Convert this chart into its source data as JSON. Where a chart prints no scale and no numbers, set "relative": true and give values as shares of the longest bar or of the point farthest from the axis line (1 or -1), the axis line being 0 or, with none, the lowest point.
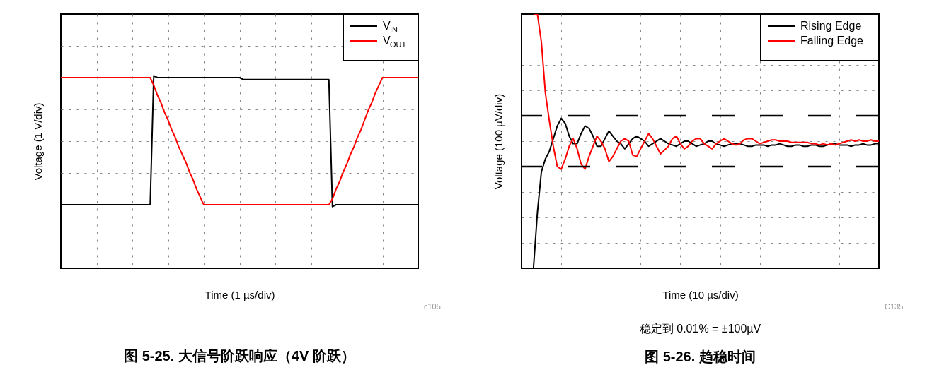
{
  "chart_data": [
    {
      "type": "line",
      "title": "图 5-25. 大信号阶跃响应（4V 阶跃）",
      "xlabel": "Time (1 µs/div)",
      "ylabel": "Voltage (1 V/div)",
      "annotations": [
        "c105"
      ],
      "relative": true,
      "grid": true,
      "legend": "top right",
      "tick_labels": false,
      "categories": [
        null,
        null,
        null,
        null,
        null,
        null,
        null,
        null,
        null,
        null,
        null,
        null,
        null,
        null,
        null,
        null,
        null,
        null,
        null,
        null,
        null,
        null,
        null,
        null,
        null,
        null,
        null,
        null,
        null,
        null,
        null,
        null,
        null,
        null,
        null,
        null,
        null,
        null,
        null,
        null,
        null,
        null,
        null,
        null,
        null,
        null,
        null,
        null,
        null,
        null,
        null,
        null,
        null,
        null,
        null,
        null,
        null,
        null,
        null,
        null,
        null,
        null,
        null,
        null,
        null,
        null,
        null,
        null,
        null,
        null,
        null,
        null,
        null,
        null,
        null,
        null,
        null,
        null,
        null,
        null,
        null,
        null,
        null,
        null,
        null,
        null,
        null,
        null,
        null,
        null,
        null,
        null,
        null,
        null,
        null,
        null,
        null,
        null,
        null,
        null,
        null
      ],
      "series": [
        {
          "name": "V$_{IN}$",
          "color": "#000000",
          "values": [
            0.33,
            0.33,
            0.33,
            0.33,
            0.33,
            0.33,
            0.33,
            0.33,
            0.33,
            0.33,
            0.33,
            0.33,
            0.33,
            0.33,
            0.33,
            0.33,
            0.33,
            0.33,
            0.33,
            0.33,
            0.33,
            0.33,
            0.33,
            0.33,
            0.33,
            0.33,
            1.0,
            0.99,
            0.99,
            0.99,
            0.99,
            0.99,
            0.99,
            0.99,
            0.99,
            0.99,
            0.99,
            0.99,
            0.99,
            0.99,
            0.99,
            0.99,
            0.99,
            0.99,
            0.99,
            0.99,
            0.99,
            0.99,
            0.99,
            0.99,
            0.99,
            0.98,
            0.98,
            0.98,
            0.98,
            0.98,
            0.98,
            0.98,
            0.98,
            0.98,
            0.98,
            0.98,
            0.98,
            0.98,
            0.98,
            0.98,
            0.98,
            0.98,
            0.98,
            0.98,
            0.98,
            0.98,
            0.98,
            0.98,
            0.98,
            0.98,
            0.32,
            0.33,
            0.33,
            0.33,
            0.33,
            0.33,
            0.33,
            0.33,
            0.33,
            0.33,
            0.33,
            0.33,
            0.33,
            0.33,
            0.33,
            0.33,
            0.33,
            0.33,
            0.33,
            0.33,
            0.33,
            0.33,
            0.33,
            0.33,
            0.33
          ]
        },
        {
          "name": "V$_{OUT}$",
          "color": "#ff0000",
          "values": [
            0.99,
            0.99,
            0.99,
            0.99,
            0.99,
            0.99,
            0.99,
            0.99,
            0.99,
            0.99,
            0.99,
            0.99,
            0.99,
            0.99,
            0.99,
            0.99,
            0.99,
            0.99,
            0.99,
            0.99,
            0.99,
            0.99,
            0.99,
            0.99,
            0.99,
            0.99,
            0.95,
            0.9,
            0.86,
            0.81,
            0.77,
            0.72,
            0.68,
            0.63,
            0.59,
            0.55,
            0.5,
            0.46,
            0.41,
            0.37,
            0.33,
            0.33,
            0.33,
            0.33,
            0.33,
            0.33,
            0.33,
            0.33,
            0.33,
            0.33,
            0.33,
            0.33,
            0.33,
            0.33,
            0.33,
            0.33,
            0.33,
            0.33,
            0.33,
            0.33,
            0.33,
            0.33,
            0.33,
            0.33,
            0.33,
            0.33,
            0.33,
            0.33,
            0.33,
            0.33,
            0.33,
            0.33,
            0.33,
            0.33,
            0.33,
            0.33,
            0.36,
            0.41,
            0.45,
            0.5,
            0.54,
            0.59,
            0.63,
            0.68,
            0.72,
            0.77,
            0.82,
            0.86,
            0.91,
            0.95,
            0.99,
            0.99,
            0.99,
            0.99,
            0.99,
            0.99,
            0.99,
            0.99,
            0.99,
            0.99,
            0.99
          ]
        }
      ]
    },
    {
      "type": "line",
      "title": "图 5-26. 趋稳时间",
      "xlabel": "Time (10 µs/div)",
      "ylabel": "Voltage (100 µV/div)",
      "annotations": [
        "C135",
        "稳定到 0.01% = ±100µV"
      ],
      "relative": true,
      "grid": true,
      "legend": "top right",
      "tick_labels": false,
      "categories": [
        null,
        null,
        null,
        null,
        null,
        null,
        null,
        null,
        null,
        null,
        null,
        null,
        null,
        null,
        null,
        null,
        null,
        null,
        null,
        null,
        null,
        null,
        null,
        null,
        null,
        null,
        null,
        null,
        null,
        null,
        null,
        null,
        null,
        null,
        null,
        null,
        null,
        null,
        null,
        null,
        null,
        null,
        null,
        null,
        null,
        null,
        null,
        null,
        null,
        null,
        null,
        null,
        null,
        null,
        null,
        null,
        null,
        null,
        null,
        null,
        null,
        null,
        null,
        null,
        null,
        null,
        null,
        null,
        null,
        null,
        null,
        null,
        null,
        null,
        null,
        null,
        null,
        null,
        null,
        null,
        null,
        null,
        null,
        null,
        null,
        null,
        null,
        null
      ],
      "ref_lines": [
        {
          "axis": "y",
          "value": 0.6,
          "color": "#000000",
          "line_style": "dashed"
        },
        {
          "axis": "y",
          "value": 0.4,
          "color": "#000000",
          "line_style": "dashed"
        }
      ],
      "series": [
        {
          "name": "Rising Edge",
          "color": "#000000",
          "values": [
            0,
            0.22,
            0.38,
            0.43,
            0.46,
            0.51,
            0.56,
            0.59,
            0.57,
            0.52,
            0.49,
            0.49,
            0.53,
            0.56,
            0.55,
            0.52,
            0.48,
            0.48,
            0.51,
            0.54,
            0.52,
            0.5,
            0.49,
            0.47,
            0.49,
            0.51,
            0.52,
            0.51,
            0.5,
            0.48,
            0.49,
            0.5,
            0.51,
            0.5,
            0.49,
            0.485,
            0.48,
            0.49,
            0.5,
            0.5,
            0.49,
            0.48,
            0.485,
            0.49,
            0.5,
            0.5,
            0.49,
            0.485,
            0.48,
            0.485,
            0.49,
            0.49,
            0.49,
            0.485,
            0.48,
            0.48,
            0.485,
            0.485,
            0.485,
            0.48,
            0.485,
            0.485,
            0.49,
            0.485,
            0.48,
            0.48,
            0.485,
            0.485,
            0.48,
            0.48,
            0.485,
            0.485,
            0.48,
            0.48,
            0.485,
            0.49,
            0.49,
            0.485,
            0.485,
            0.485,
            0.48,
            0.485,
            0.485,
            0.49,
            0.485,
            0.485,
            0.49,
            0.49
          ]
        },
        {
          "name": "Falling Edge",
          "color": "#ff0000",
          "values": [
            1.0,
            1.0,
            0.89,
            0.69,
            0.58,
            0.48,
            0.4,
            0.39,
            0.43,
            0.48,
            0.51,
            0.47,
            0.41,
            0.39,
            0.44,
            0.48,
            0.52,
            0.5,
            0.47,
            0.42,
            0.44,
            0.47,
            0.5,
            0.51,
            0.5,
            0.445,
            0.44,
            0.47,
            0.5,
            0.53,
            0.51,
            0.48,
            0.45,
            0.465,
            0.48,
            0.51,
            0.52,
            0.49,
            0.47,
            0.48,
            0.5,
            0.51,
            0.51,
            0.49,
            0.48,
            0.47,
            0.49,
            0.5,
            0.51,
            0.5,
            0.49,
            0.485,
            0.49,
            0.505,
            0.51,
            0.51,
            0.5,
            0.49,
            0.495,
            0.5,
            0.505,
            0.505,
            0.5,
            0.5,
            0.5,
            0.495,
            0.495,
            0.495,
            0.495,
            0.495,
            0.49,
            0.49,
            0.485,
            0.49,
            0.485,
            0.49,
            0.485,
            0.49,
            0.495,
            0.5,
            0.505,
            0.5,
            0.505,
            0.5,
            0.5,
            0.505,
            0.5,
            0.5
          ]
        }
      ]
    }
  ]
}
